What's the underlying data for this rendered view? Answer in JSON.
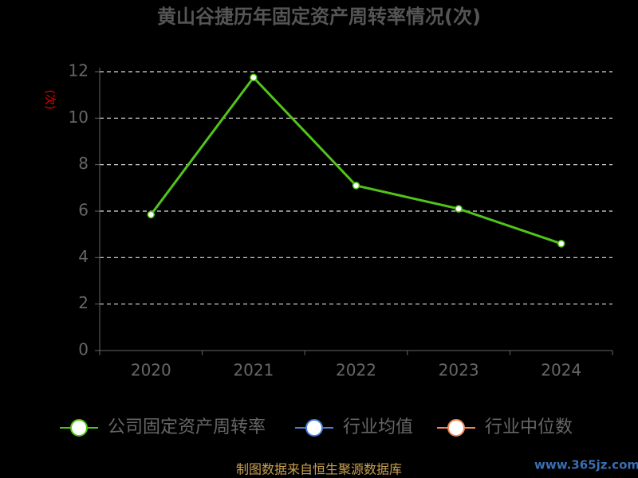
{
  "chart_data": {
    "type": "line",
    "title": "黄山谷捷历年固定资产周转率情况(次)",
    "y_label": "(次)",
    "categories": [
      "2020",
      "2021",
      "2022",
      "2023",
      "2024"
    ],
    "series": [
      {
        "name": "公司固定资产周转率",
        "color": "#52c41a",
        "values": [
          5.85,
          11.75,
          7.1,
          6.1,
          4.6
        ]
      },
      {
        "name": "行业均值",
        "color": "#4a7fd8",
        "values": [
          null,
          null,
          null,
          null,
          null
        ]
      },
      {
        "name": "行业中位数",
        "color": "#f08a5d",
        "values": [
          null,
          null,
          null,
          null,
          null
        ]
      }
    ],
    "ylim": [
      0,
      12
    ],
    "yticks": [
      0,
      2,
      4,
      6,
      8,
      10,
      12
    ],
    "grid": true,
    "legend": "bottom",
    "source": "制图数据来自恒生聚源数据库",
    "watermark": "www.365jz.com"
  }
}
